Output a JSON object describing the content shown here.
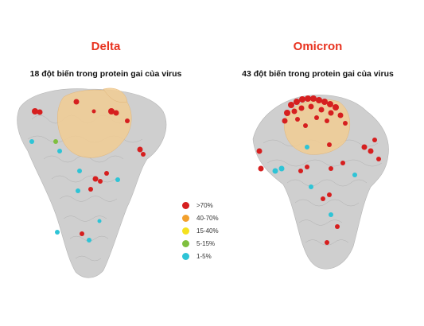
{
  "left": {
    "title": "Delta",
    "subtitle": "18 đột biến trong protein gai của virus"
  },
  "right": {
    "title": "Omicron",
    "subtitle": "43 đột biến trong protein gai của virus"
  },
  "legend": {
    "items": [
      {
        "label": ">70%",
        "color": "#d61f1f"
      },
      {
        "label": "40-70%",
        "color": "#f2a02d"
      },
      {
        "label": "15-40%",
        "color": "#f5e11e"
      },
      {
        "label": "5-15%",
        "color": "#7fbf3f"
      },
      {
        "label": "1-5%",
        "color": "#2ec4d6"
      }
    ]
  },
  "colors": {
    "title": "#e8321f",
    "protein": "#c8c8c8",
    "highlight": "#f0c98a"
  }
}
